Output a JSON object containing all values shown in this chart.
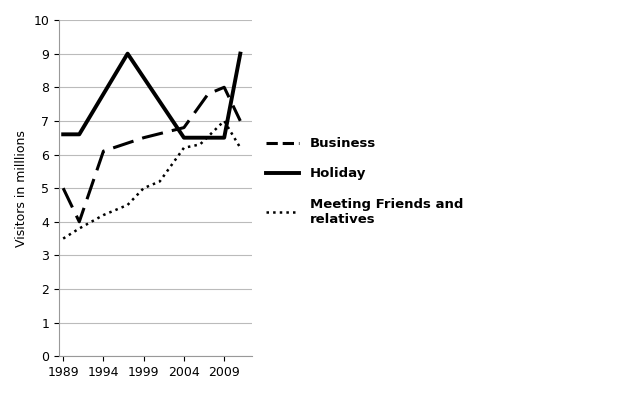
{
  "business_x": [
    1989,
    1991,
    1994,
    1999,
    2004,
    2007,
    2009,
    2011
  ],
  "business_y": [
    5.0,
    4.0,
    6.1,
    6.5,
    6.8,
    7.8,
    8.0,
    7.0
  ],
  "holiday_x": [
    1989,
    1991,
    1997,
    2004,
    2009,
    2011
  ],
  "holiday_y": [
    6.6,
    6.6,
    9.0,
    6.5,
    6.5,
    9.0
  ],
  "friends_x": [
    1989,
    1991,
    1994,
    1997,
    1999,
    2001,
    2004,
    2006,
    2009,
    2011
  ],
  "friends_y": [
    3.5,
    3.8,
    4.2,
    4.5,
    5.0,
    5.2,
    6.2,
    6.3,
    7.0,
    6.2
  ],
  "ylabel": "Visitors in milllions",
  "ylim": [
    0,
    10
  ],
  "xlim": [
    1988.5,
    2012.5
  ],
  "xticks": [
    1989,
    1994,
    1999,
    2004,
    2009
  ],
  "yticks": [
    0,
    1,
    2,
    3,
    4,
    5,
    6,
    7,
    8,
    9,
    10
  ],
  "legend_labels": [
    "Business",
    "Holiday",
    "Meeting Friends and\nrelatives"
  ],
  "line_color": "#000000",
  "background_color": "#ffffff",
  "grid_color": "#bbbbbb"
}
